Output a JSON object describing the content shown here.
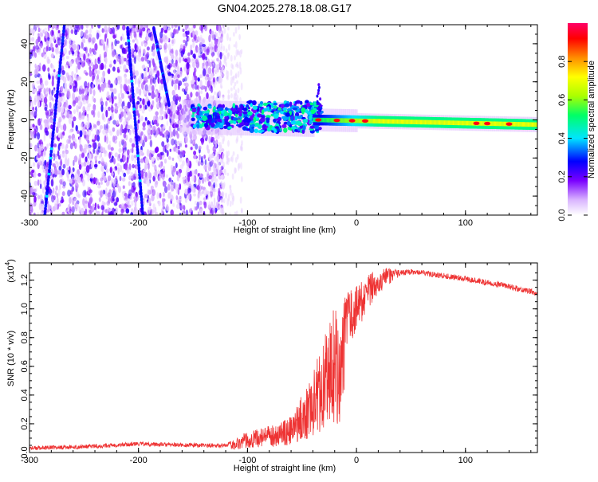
{
  "title": "GN04.2025.278.18.08.G17",
  "chart_data": [
    {
      "type": "heatmap",
      "xlabel": "Height of straight line (km)",
      "ylabel": "Frequency (Hz)",
      "xlim": [
        -300,
        166
      ],
      "ylim": [
        -50,
        50
      ],
      "xticks": [
        -300,
        -200,
        -100,
        0,
        100
      ],
      "yticks": [
        -40,
        -20,
        0,
        20,
        40
      ],
      "colorbar": {
        "label": "Normalized spectral amplitude",
        "range": [
          0,
          1
        ],
        "ticks": [
          "0.0",
          "0.2",
          "0.4",
          "0.6",
          "0.8"
        ],
        "colors": [
          "#ffffff",
          "#d9b3ff",
          "#7a00ff",
          "#0000ff",
          "#00e5ff",
          "#00ff66",
          "#aaff00",
          "#ffff00",
          "#ff8c00",
          "#ff0000",
          "#ff0066"
        ]
      },
      "features": [
        {
          "name": "carrier",
          "x": [
            -160,
            166
          ],
          "y_center": [
            1.5,
            -2.5
          ],
          "amplitude": [
            0.35,
            0.75
          ]
        },
        {
          "name": "diagonal-trace-left",
          "x0": -286,
          "y0": -50,
          "x1": -268,
          "y1": 50
        },
        {
          "name": "diagonal-trace-mid",
          "x0": -210,
          "y0": 48,
          "x1": -196,
          "y1": -50
        },
        {
          "name": "diagonal-trace-right",
          "x0": -186,
          "y0": 48,
          "x1": -172,
          "y1": 8
        }
      ]
    },
    {
      "type": "line",
      "xlabel": "Height of straight line (km)",
      "ylabel": "SNR (10 * v/v)",
      "y_multiplier": "(x10",
      "y_multiplier_exp": "4",
      "xlim": [
        -300,
        166
      ],
      "ylim": [
        0,
        1.32
      ],
      "xticks": [
        -300,
        -200,
        -100,
        0,
        100
      ],
      "yticks": [
        "0.0",
        "0.2",
        "0.4",
        "0.6",
        "0.8",
        "1.0",
        "1.2"
      ],
      "color": "#ee3333",
      "x": [
        -300,
        -250,
        -200,
        -150,
        -120,
        -100,
        -80,
        -60,
        -40,
        -30,
        -20,
        -15,
        -10,
        0,
        20,
        40,
        55,
        70,
        100,
        130,
        166
      ],
      "y": [
        0.03,
        0.04,
        0.06,
        0.05,
        0.05,
        0.12,
        0.15,
        0.2,
        0.45,
        0.65,
        0.85,
        0.7,
        0.9,
        1.0,
        1.2,
        1.25,
        1.26,
        1.24,
        1.21,
        1.17,
        1.11
      ]
    }
  ]
}
